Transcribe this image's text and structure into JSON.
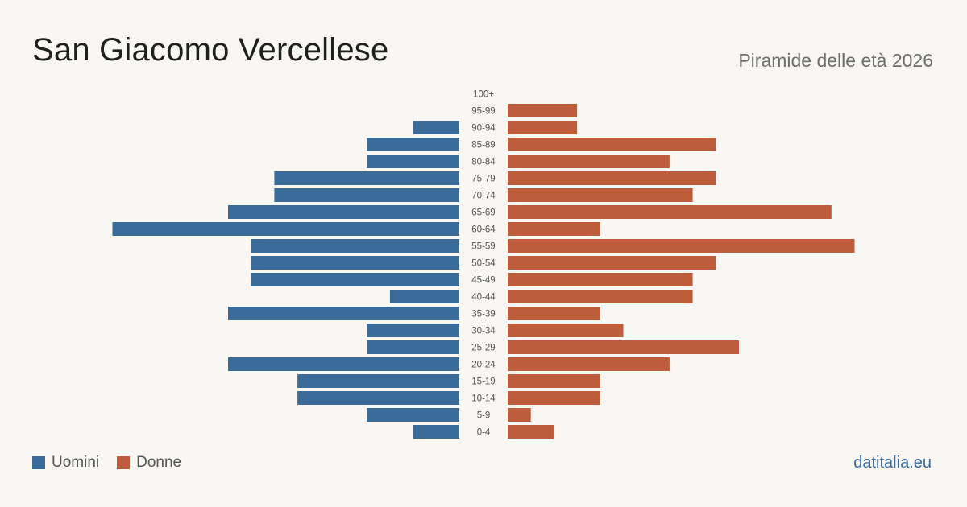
{
  "header": {
    "title": "San Giacomo Vercellese",
    "subtitle": "Piramide delle età 2026"
  },
  "legend": {
    "men_label": "Uomini",
    "women_label": "Donne"
  },
  "footer": {
    "site": "datitalia.eu"
  },
  "colors": {
    "men": "#3b6b9b",
    "women": "#bd5d3c",
    "background": "#f9f7f3"
  },
  "chart_data": {
    "type": "bar",
    "orientation": "horizontal-pyramid",
    "categories": [
      "100+",
      "95-99",
      "90-94",
      "85-89",
      "80-84",
      "75-79",
      "70-74",
      "65-69",
      "60-64",
      "55-59",
      "50-54",
      "45-49",
      "40-44",
      "35-39",
      "30-34",
      "25-29",
      "20-24",
      "15-19",
      "10-14",
      "5-9",
      "0-4"
    ],
    "series": [
      {
        "name": "Uomini",
        "values": [
          0,
          0,
          2,
          4,
          4,
          8,
          8,
          10,
          15,
          9,
          9,
          9,
          3,
          10,
          4,
          4,
          10,
          7,
          7,
          4,
          2
        ]
      },
      {
        "name": "Donne",
        "values": [
          0,
          3,
          3,
          9,
          7,
          9,
          8,
          14,
          4,
          15,
          9,
          8,
          8,
          4,
          5,
          10,
          7,
          4,
          4,
          1,
          2
        ]
      }
    ],
    "legend_position": "bottom-left",
    "grid": false
  }
}
